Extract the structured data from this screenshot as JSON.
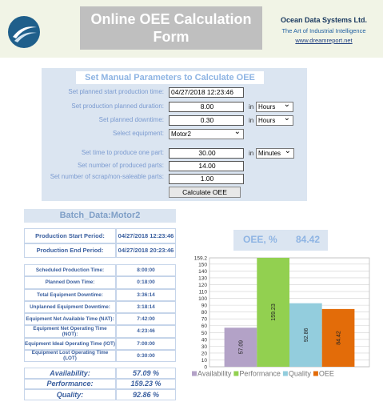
{
  "header": {
    "title": "Online OEE Calculation Form",
    "company": "Ocean Data Systems Ltd.",
    "tagline": "The Art of Industrial Intelligence",
    "url": "www.dreamreport.net"
  },
  "form": {
    "title": "Set Manual Parameters to Calculate OEE",
    "fields": [
      {
        "label": "Set planned start production time:",
        "value": "04/27/2018 12:23:46"
      },
      {
        "label": "Set production planned duration:",
        "value": "8.00",
        "unit_prefix": "in",
        "unit": "Hours"
      },
      {
        "label": "Set planned downtime:",
        "value": "0.30",
        "unit_prefix": "in",
        "unit": "Hours"
      },
      {
        "label": "Select equipment:",
        "select": "Motor2"
      },
      {
        "label": "Set time to produce one part:",
        "value": "30.00",
        "unit_prefix": "in",
        "unit": "Minutes"
      },
      {
        "label": "Set number of produced parts:",
        "value": "14.00"
      },
      {
        "label": "Set number of scrap/non-saleable parts:",
        "value": "1.00"
      }
    ],
    "button": "Calculate OEE"
  },
  "batch": {
    "title": "Batch_Data:Motor2",
    "periods": [
      [
        "Production Start Period:",
        "04/27/2018 12:23:46"
      ],
      [
        "Production End Period:",
        "04/27/2018 20:23:46"
      ]
    ],
    "times": [
      [
        "Scheduled Production Time:",
        "8:00:00"
      ],
      [
        "Planned Down Time:",
        "0:18:00"
      ],
      [
        "Total Equipment Downtime:",
        "3:36:14"
      ],
      [
        "Unplanned Equipment Downtime:",
        "3:18:14"
      ],
      [
        "Equipment Net Available Time (NAT):",
        "7:42:00"
      ],
      [
        "Equipment Net Operating Time (NOT):",
        "4:23:46"
      ],
      [
        "Equipment Ideal Operating Time (IOT)",
        "7:00:00"
      ],
      [
        "Equipment Lost Operating Time (LOT)",
        "0:30:00"
      ]
    ],
    "kpis": [
      [
        "Availability:",
        "57.09  %"
      ],
      [
        "Performance:",
        "159.23  %"
      ],
      [
        "Quality:",
        "92.86  %"
      ]
    ]
  },
  "oee": {
    "label": "OEE, %",
    "value": "84.42"
  },
  "chart_data": {
    "type": "bar",
    "categories": [
      null
    ],
    "series": [
      {
        "name": "Availability",
        "color": "#b3a2c7",
        "values": [
          57.09
        ]
      },
      {
        "name": "Performance",
        "color": "#92d050",
        "values": [
          159.23
        ]
      },
      {
        "name": "Quality",
        "color": "#93cddd",
        "values": [
          92.86
        ]
      },
      {
        "name": "OEE",
        "color": "#e36c09",
        "values": [
          84.42
        ]
      }
    ],
    "ylim": [
      0,
      159.2
    ],
    "yticks": [
      0,
      10,
      20,
      30,
      40,
      50,
      60,
      70,
      80,
      90,
      100,
      110,
      120,
      130,
      140,
      150,
      159.2
    ],
    "grid": true,
    "legend": "bottom"
  }
}
